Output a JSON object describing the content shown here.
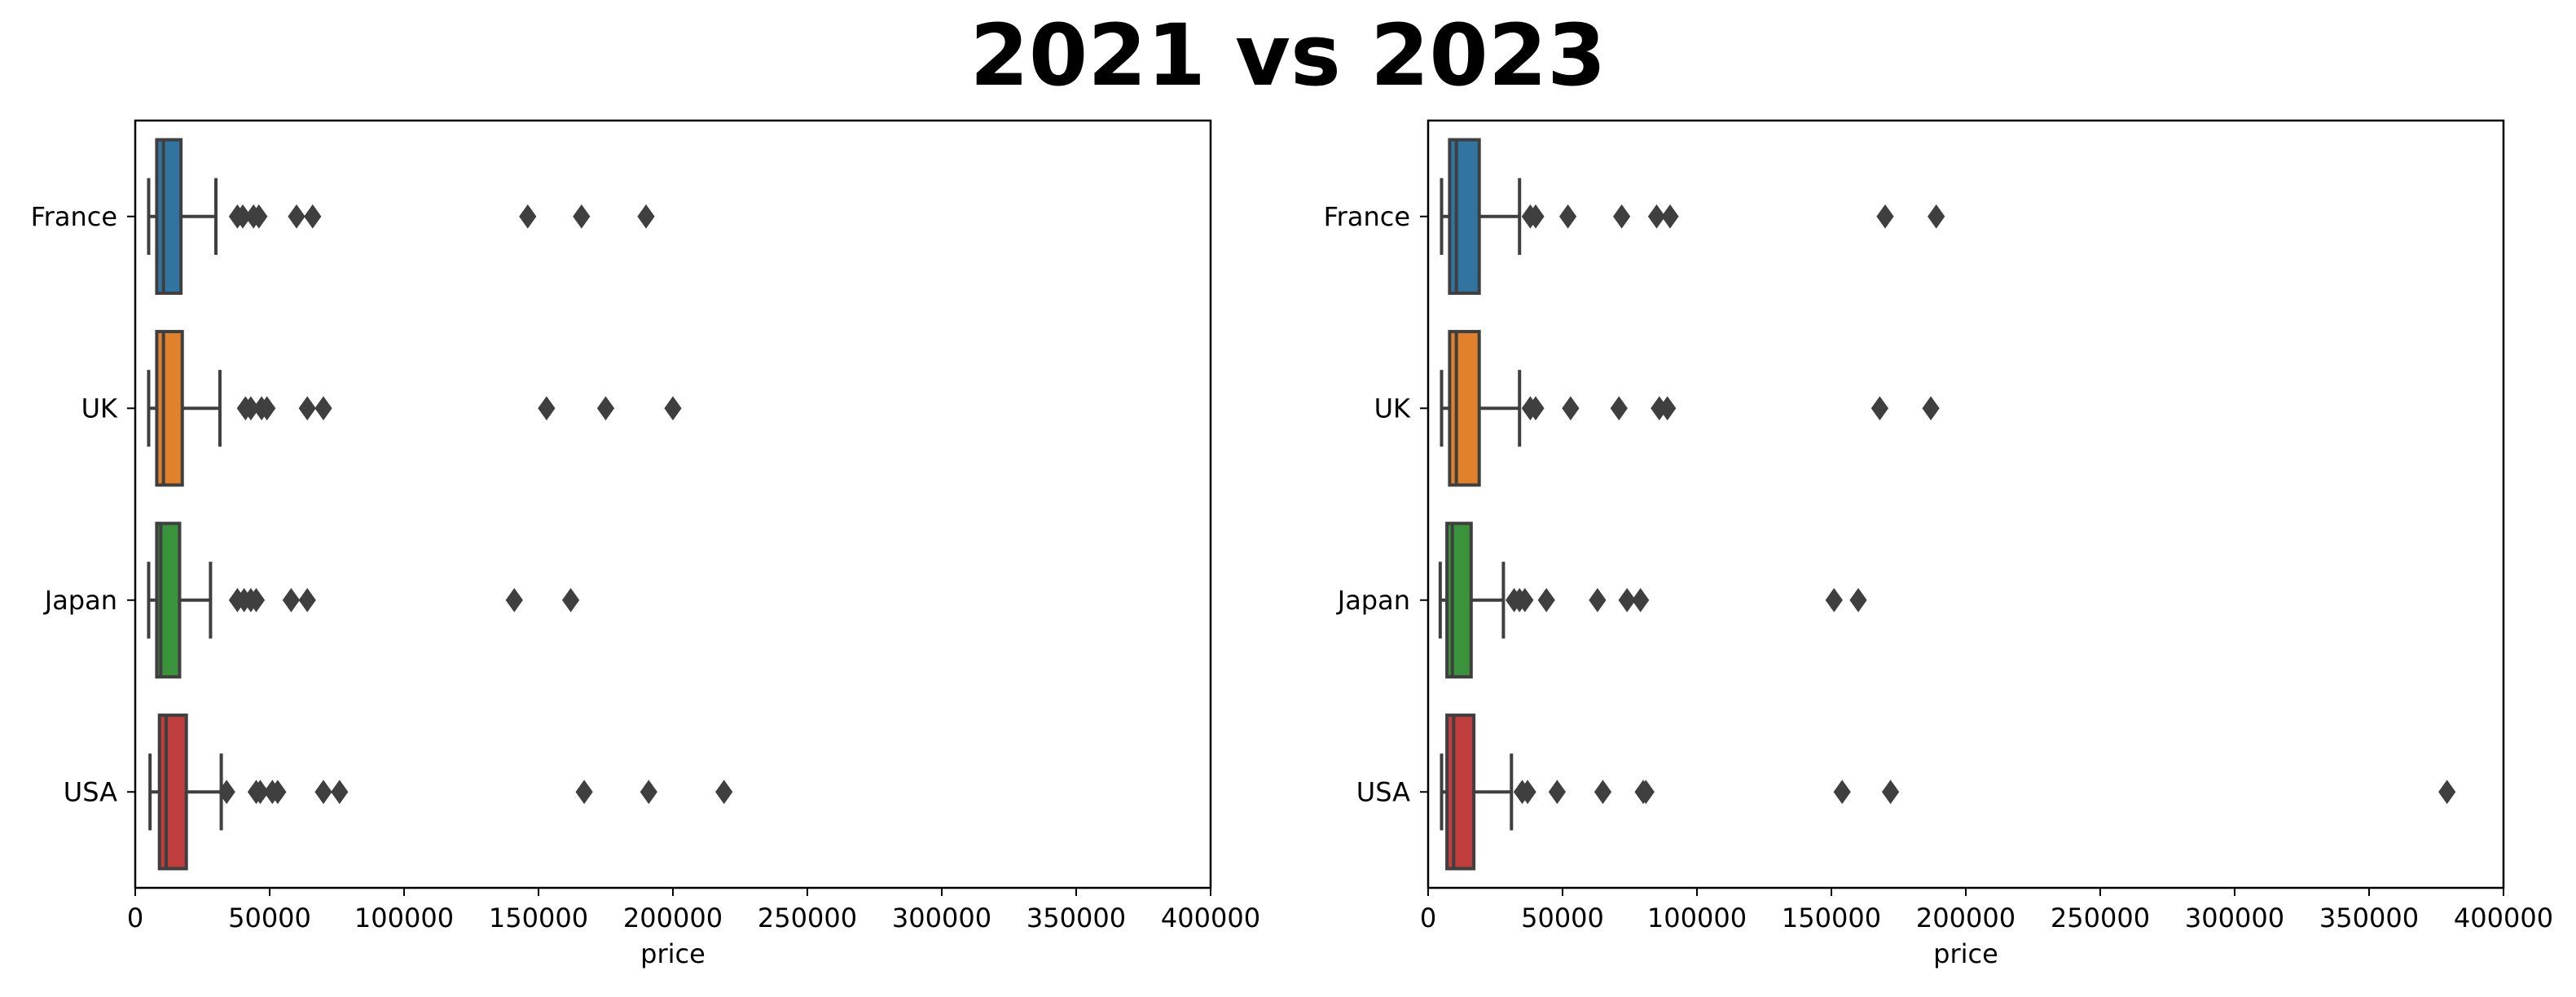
{
  "figure": {
    "title": "2021 vs 2023"
  },
  "chart_data": [
    {
      "type": "box",
      "orientation": "horizontal",
      "xlabel": "price",
      "ylabel": "",
      "xlim": [
        0,
        400000
      ],
      "xticks": [
        0,
        50000,
        100000,
        150000,
        200000,
        250000,
        300000,
        350000,
        400000
      ],
      "xtick_labels": [
        "0",
        "50000",
        "100000",
        "150000",
        "200000",
        "250000",
        "300000",
        "350000",
        "400000"
      ],
      "grid": false,
      "categories": [
        "France",
        "UK",
        "Japan",
        "USA"
      ],
      "boxes": [
        {
          "name": "France",
          "color": "#3274a1",
          "whisker_low": 5000,
          "q1": 8000,
          "median": 10500,
          "q3": 17000,
          "whisker_high": 30000,
          "outliers": [
            38000,
            40000,
            44000,
            46000,
            60000,
            66000,
            146000,
            166000,
            190000
          ]
        },
        {
          "name": "UK",
          "color": "#e1812c",
          "whisker_low": 5000,
          "q1": 8000,
          "median": 10500,
          "q3": 17500,
          "whisker_high": 31500,
          "outliers": [
            41000,
            43000,
            47000,
            49000,
            64000,
            70000,
            153000,
            175000,
            200000
          ]
        },
        {
          "name": "Japan",
          "color": "#3a923a",
          "whisker_low": 5000,
          "q1": 8000,
          "median": 9500,
          "q3": 16500,
          "whisker_high": 28000,
          "outliers": [
            38000,
            40500,
            43000,
            45000,
            58000,
            64000,
            141000,
            162000
          ]
        },
        {
          "name": "USA",
          "color": "#c03d3e",
          "whisker_low": 5500,
          "q1": 9000,
          "median": 11500,
          "q3": 19000,
          "whisker_high": 32000,
          "outliers": [
            34000,
            45000,
            46500,
            51000,
            53000,
            70000,
            76000,
            167000,
            191000,
            219000
          ]
        }
      ]
    },
    {
      "type": "box",
      "orientation": "horizontal",
      "xlabel": "price",
      "ylabel": "",
      "xlim": [
        0,
        400000
      ],
      "xticks": [
        0,
        50000,
        100000,
        150000,
        200000,
        250000,
        300000,
        350000,
        400000
      ],
      "xtick_labels": [
        "0",
        "50000",
        "100000",
        "150000",
        "200000",
        "250000",
        "300000",
        "350000",
        "400000"
      ],
      "grid": false,
      "categories": [
        "France",
        "UK",
        "Japan",
        "USA"
      ],
      "boxes": [
        {
          "name": "France",
          "color": "#3274a1",
          "whisker_low": 5000,
          "q1": 8000,
          "median": 10500,
          "q3": 19000,
          "whisker_high": 34000,
          "outliers": [
            38000,
            40000,
            52000,
            72000,
            85000,
            90000,
            170000,
            189000
          ]
        },
        {
          "name": "UK",
          "color": "#e1812c",
          "whisker_low": 5000,
          "q1": 8000,
          "median": 10500,
          "q3": 19000,
          "whisker_high": 34000,
          "outliers": [
            38000,
            40000,
            53000,
            71000,
            86000,
            89000,
            168000,
            187000
          ]
        },
        {
          "name": "Japan",
          "color": "#3a923a",
          "whisker_low": 4500,
          "q1": 7000,
          "median": 9000,
          "q3": 16000,
          "whisker_high": 28000,
          "outliers": [
            32000,
            34000,
            36000,
            44000,
            63000,
            74000,
            79000,
            151000,
            160000
          ]
        },
        {
          "name": "USA",
          "color": "#c03d3e",
          "whisker_low": 5000,
          "q1": 7000,
          "median": 9500,
          "q3": 17000,
          "whisker_high": 31000,
          "outliers": [
            35000,
            37000,
            48000,
            65000,
            80000,
            81000,
            154000,
            172000,
            379000
          ]
        }
      ]
    }
  ]
}
